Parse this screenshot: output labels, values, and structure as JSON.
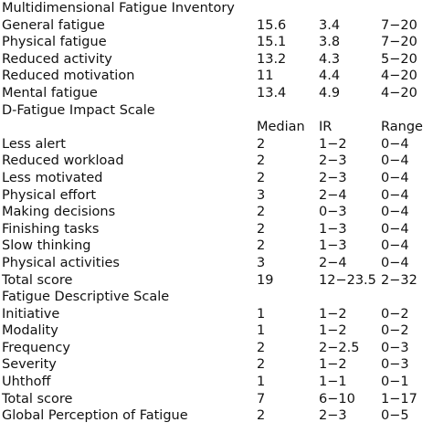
{
  "sections": [
    {
      "title": "Multidimensional Fatigue Inventory",
      "header": null,
      "rows": [
        {
          "label": "General fatigue",
          "median": "15.6",
          "ir": "3.4",
          "range": "7−20"
        },
        {
          "label": "Physical fatigue",
          "median": "15.1",
          "ir": "3.8",
          "range": "7−20"
        },
        {
          "label": "Reduced activity",
          "median": "13.2",
          "ir": "4.3",
          "range": "5−20"
        },
        {
          "label": "Reduced motivation",
          "median": "11",
          "ir": "4.4",
          "range": "4−20"
        },
        {
          "label": "Mental fatigue",
          "median": "13.4",
          "ir": "4.9",
          "range": "4−20"
        }
      ]
    },
    {
      "title": "D-Fatigue Impact Scale",
      "header": {
        "median": "Median",
        "ir": "IR",
        "range": "Range"
      },
      "rows": [
        {
          "label": "Less alert",
          "median": "2",
          "ir": "1−2",
          "range": "0−4"
        },
        {
          "label": "Reduced workload",
          "median": "2",
          "ir": "2−3",
          "range": "0−4"
        },
        {
          "label": "Less motivated",
          "median": "2",
          "ir": "2−3",
          "range": "0−4"
        },
        {
          "label": "Physical effort",
          "median": "3",
          "ir": "2−4",
          "range": "0−4"
        },
        {
          "label": "Making decisions",
          "median": "2",
          "ir": "0−3",
          "range": "0−4"
        },
        {
          "label": "Finishing tasks",
          "median": "2",
          "ir": "1−3",
          "range": "0−4"
        },
        {
          "label": "Slow thinking",
          "median": "2",
          "ir": "1−3",
          "range": "0−4"
        },
        {
          "label": "Physical activities",
          "median": "3",
          "ir": "2−4",
          "range": "0−4"
        },
        {
          "label": "Total score",
          "median": "19",
          "ir": "12−23.5",
          "range": "2−32"
        }
      ]
    },
    {
      "title": "Fatigue Descriptive Scale",
      "header": null,
      "rows": [
        {
          "label": "Initiative",
          "median": "1",
          "ir": "1−2",
          "range": "0−2"
        },
        {
          "label": "Modality",
          "median": "1",
          "ir": "1−2",
          "range": "0−2"
        },
        {
          "label": "Frequency",
          "median": "2",
          "ir": "2−2.5",
          "range": "0−3"
        },
        {
          "label": "Severity",
          "median": "2",
          "ir": "1−2",
          "range": "0−3"
        },
        {
          "label": "Uhthoff",
          "median": "1",
          "ir": "1−1",
          "range": "0−1"
        },
        {
          "label": "Total score",
          "median": "7",
          "ir": "6−10",
          "range": "1−17"
        }
      ]
    },
    {
      "title": null,
      "header": null,
      "rows": [
        {
          "label": "Global Perception of Fatigue",
          "median": "2",
          "ir": "2−3",
          "range": "0−5"
        }
      ]
    }
  ]
}
